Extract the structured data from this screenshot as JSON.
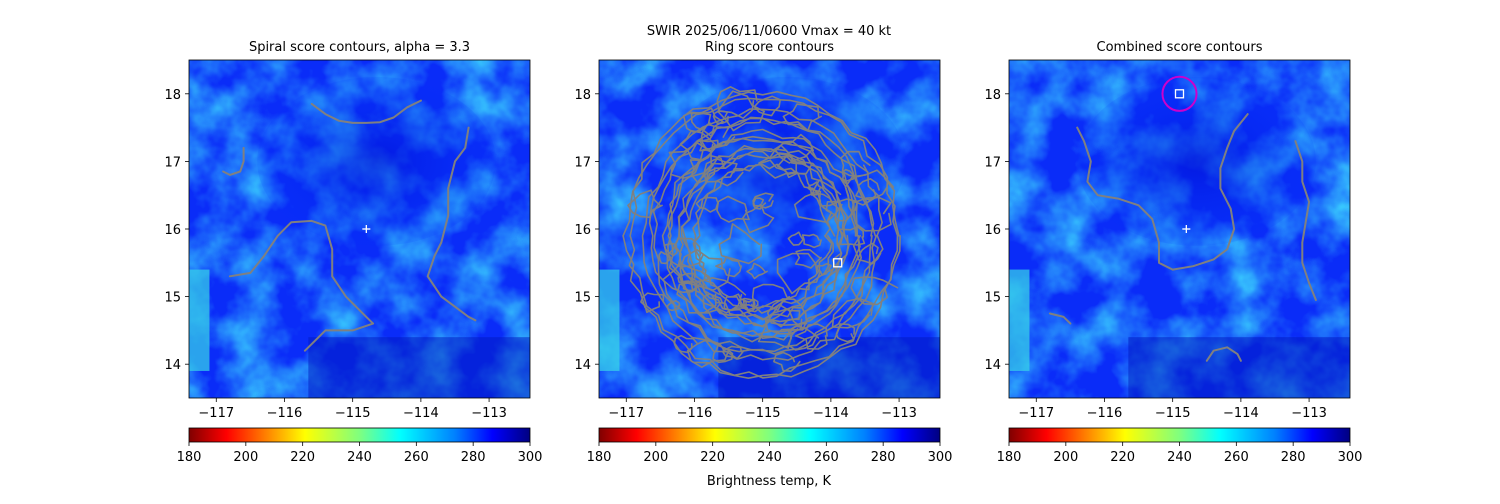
{
  "figure": {
    "suptitle": "SWIR  2025/06/11/0600    Vmax = 40 kt",
    "colorbar_label": "Brightness temp, K"
  },
  "chart_data": [
    {
      "type": "heatmap",
      "title": "Spiral score contours, alpha =  3.3",
      "xlim": [
        -117.4,
        -112.4
      ],
      "ylim": [
        13.5,
        18.5
      ],
      "x_ticks": [
        -117,
        -116,
        -115,
        -114,
        -113
      ],
      "y_ticks": [
        14,
        15,
        16,
        17,
        18
      ],
      "x_tick_labels": [
        "−117",
        "−116",
        "−115",
        "−114",
        "−113"
      ],
      "y_tick_labels": [
        "14",
        "15",
        "16",
        "17",
        "18"
      ],
      "center_marker": {
        "lon": -114.8,
        "lat": 16.0
      },
      "best_marker": null,
      "contour_lines": [
        [
          [
            -115.6,
            17.85
          ],
          [
            -115.4,
            17.7
          ],
          [
            -115.2,
            17.6
          ],
          [
            -115.0,
            17.57
          ],
          [
            -114.8,
            17.57
          ],
          [
            -114.6,
            17.58
          ],
          [
            -114.4,
            17.65
          ],
          [
            -114.2,
            17.8
          ],
          [
            -114.0,
            17.9
          ]
        ],
        [
          [
            -116.6,
            17.2
          ],
          [
            -116.6,
            17.0
          ],
          [
            -116.65,
            16.85
          ],
          [
            -116.8,
            16.8
          ],
          [
            -116.9,
            16.85
          ]
        ],
        [
          [
            -116.8,
            15.3
          ],
          [
            -116.5,
            15.35
          ],
          [
            -116.3,
            15.6
          ],
          [
            -116.1,
            15.9
          ],
          [
            -115.9,
            16.1
          ],
          [
            -115.6,
            16.12
          ],
          [
            -115.4,
            16.05
          ],
          [
            -115.3,
            15.7
          ],
          [
            -115.3,
            15.3
          ],
          [
            -115.1,
            15.0
          ],
          [
            -114.8,
            14.7
          ],
          [
            -114.7,
            14.6
          ],
          [
            -115.0,
            14.5
          ],
          [
            -115.4,
            14.5
          ],
          [
            -115.6,
            14.3
          ],
          [
            -115.7,
            14.2
          ]
        ],
        [
          [
            -113.3,
            17.5
          ],
          [
            -113.35,
            17.2
          ],
          [
            -113.5,
            17.0
          ],
          [
            -113.6,
            16.6
          ],
          [
            -113.6,
            16.2
          ],
          [
            -113.7,
            15.8
          ],
          [
            -113.8,
            15.6
          ],
          [
            -113.9,
            15.3
          ],
          [
            -113.7,
            15.0
          ],
          [
            -113.5,
            14.85
          ],
          [
            -113.3,
            14.7
          ],
          [
            -113.2,
            14.65
          ]
        ]
      ]
    },
    {
      "type": "heatmap",
      "title": "Ring score contours",
      "xlim": [
        -117.4,
        -112.4
      ],
      "ylim": [
        13.5,
        18.5
      ],
      "x_ticks": [
        -117,
        -116,
        -115,
        -114,
        -113
      ],
      "y_ticks": [
        14,
        15,
        16,
        17,
        18
      ],
      "x_tick_labels": [
        "−117",
        "−116",
        "−115",
        "−114",
        "−113"
      ],
      "y_tick_labels": [
        "14",
        "15",
        "16",
        "17",
        "18"
      ],
      "center_marker": null,
      "best_marker": {
        "lon": -113.9,
        "lat": 15.5,
        "circle": false
      },
      "ring_region": {
        "lon": -115.0,
        "lat": 15.9,
        "radius_deg": 2.1
      }
    },
    {
      "type": "heatmap",
      "title": "Combined score contours",
      "xlim": [
        -117.4,
        -112.4
      ],
      "ylim": [
        13.5,
        18.5
      ],
      "x_ticks": [
        -117,
        -116,
        -115,
        -114,
        -113
      ],
      "y_ticks": [
        14,
        15,
        16,
        17,
        18
      ],
      "x_tick_labels": [
        "−117",
        "−116",
        "−115",
        "−114",
        "−113"
      ],
      "y_tick_labels": [
        "14",
        "15",
        "16",
        "17",
        "18"
      ],
      "center_marker": {
        "lon": -114.8,
        "lat": 16.0
      },
      "best_marker": {
        "lon": -114.9,
        "lat": 18.0,
        "circle": true,
        "circle_radius_deg": 0.25
      },
      "contour_lines": [
        [
          [
            -116.4,
            17.5
          ],
          [
            -116.3,
            17.3
          ],
          [
            -116.2,
            17.0
          ],
          [
            -116.25,
            16.7
          ],
          [
            -116.1,
            16.5
          ],
          [
            -115.8,
            16.45
          ],
          [
            -115.5,
            16.35
          ],
          [
            -115.3,
            16.15
          ],
          [
            -115.2,
            15.8
          ],
          [
            -115.2,
            15.5
          ],
          [
            -115.0,
            15.4
          ],
          [
            -114.7,
            15.45
          ],
          [
            -114.4,
            15.55
          ],
          [
            -114.2,
            15.7
          ],
          [
            -114.1,
            16.0
          ],
          [
            -114.15,
            16.3
          ],
          [
            -114.3,
            16.6
          ],
          [
            -114.3,
            16.9
          ],
          [
            -114.2,
            17.2
          ],
          [
            -114.1,
            17.45
          ],
          [
            -113.9,
            17.7
          ]
        ],
        [
          [
            -113.2,
            17.3
          ],
          [
            -113.1,
            17.0
          ],
          [
            -113.1,
            16.7
          ],
          [
            -113.0,
            16.4
          ],
          [
            -113.05,
            16.1
          ],
          [
            -113.1,
            15.8
          ],
          [
            -113.1,
            15.5
          ],
          [
            -113.0,
            15.2
          ],
          [
            -112.9,
            14.95
          ]
        ],
        [
          [
            -116.8,
            14.75
          ],
          [
            -116.6,
            14.7
          ],
          [
            -116.5,
            14.6
          ]
        ],
        [
          [
            -114.5,
            14.05
          ],
          [
            -114.4,
            14.2
          ],
          [
            -114.2,
            14.25
          ],
          [
            -114.05,
            14.15
          ],
          [
            -114.0,
            14.05
          ]
        ]
      ]
    }
  ],
  "colorbar": {
    "min": 180,
    "max": 300,
    "ticks": [
      180,
      200,
      220,
      240,
      260,
      280,
      300
    ],
    "tick_labels": [
      "180",
      "200",
      "220",
      "240",
      "260",
      "280",
      "300"
    ],
    "colormap": "jet_r"
  },
  "colors": {
    "contour": "#808080",
    "marker": "#ffffff",
    "best_circle": "#cc00cc"
  }
}
